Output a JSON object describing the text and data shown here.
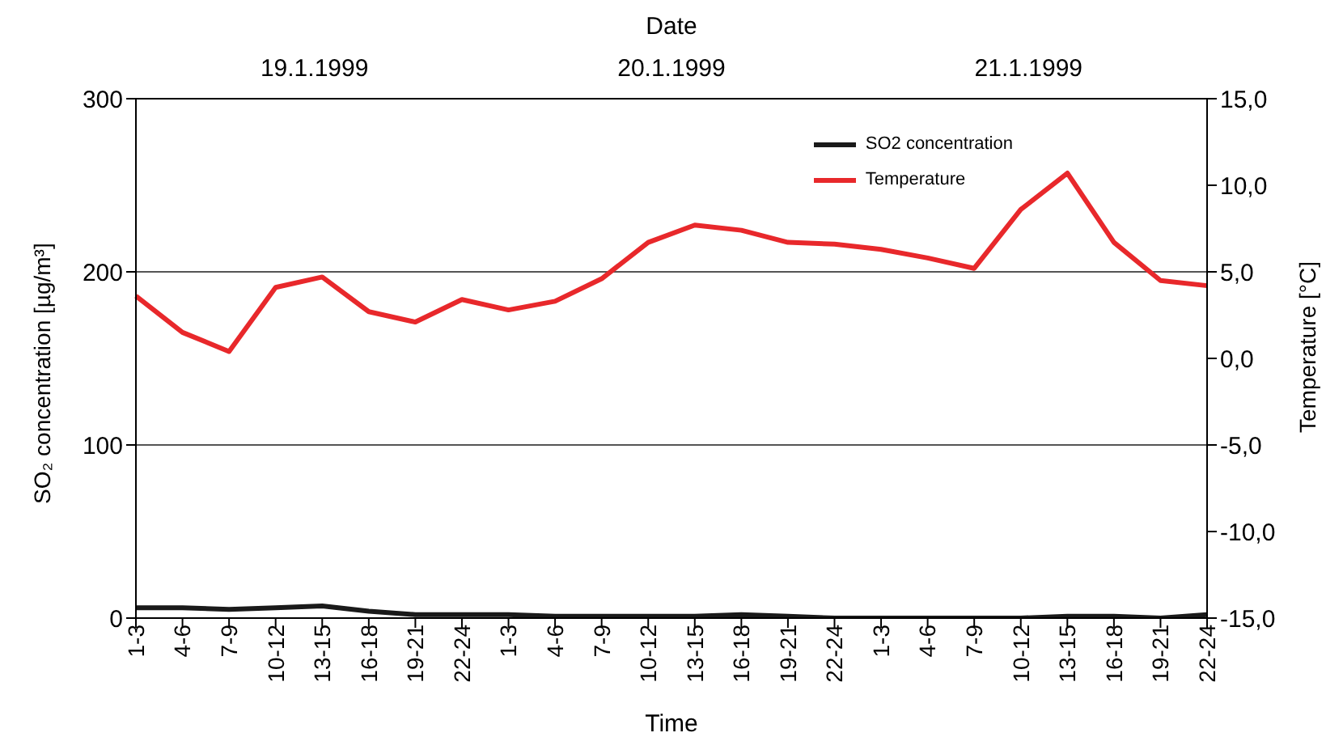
{
  "chart_data": {
    "type": "line",
    "xlabel": "Time",
    "x2label": "Date",
    "ylabel": "SO₂ concentration [µg/m³]",
    "y2label": "Temperature [°C]",
    "annotations": [
      "19.1.1999",
      "20.1.1999",
      "21.1.1999"
    ],
    "categories": [
      "1-3",
      "4-6",
      "7-9",
      "10-12",
      "13-15",
      "16-18",
      "19-21",
      "22-24",
      "1-3",
      "4-6",
      "7-9",
      "10-12",
      "13-15",
      "16-18",
      "19-21",
      "22-24",
      "1-3",
      "4-6",
      "7-9",
      "10-12",
      "13-15",
      "16-18",
      "19-21",
      "22-24"
    ],
    "series": [
      {
        "name": "SO2 concentration",
        "color": "#1a1a1a",
        "values": [
          6,
          6,
          5,
          6,
          7,
          4,
          2,
          2,
          2,
          1,
          1,
          1,
          1,
          2,
          1,
          0,
          0,
          0,
          0,
          0,
          1,
          1,
          0,
          2
        ]
      },
      {
        "name": "Temperature",
        "color": "#e8282b",
        "axis": "y2",
        "values": [
          3.6,
          1.5,
          0.4,
          4.1,
          4.7,
          2.7,
          2.1,
          3.4,
          2.8,
          3.3,
          4.6,
          6.7,
          7.7,
          7.4,
          6.7,
          6.6,
          6.3,
          5.8,
          5.2,
          8.6,
          10.7,
          6.7,
          4.5,
          4.2
        ]
      }
    ],
    "ylim": [
      0,
      300
    ],
    "yticks": [
      0,
      100,
      200,
      300
    ],
    "y2lim": [
      -15,
      15
    ],
    "y2ticks": [
      {
        "value": -15,
        "label": "-15,0"
      },
      {
        "value": -10,
        "label": "-10,0"
      },
      {
        "value": -5,
        "label": "-5,0"
      },
      {
        "value": 0,
        "label": "0,0"
      },
      {
        "value": 5,
        "label": "5,0"
      },
      {
        "value": 10,
        "label": "10,0"
      },
      {
        "value": 15,
        "label": "15,0"
      }
    ],
    "grid": "y",
    "legend": "top right",
    "marker": "none",
    "line_style": "solid"
  }
}
